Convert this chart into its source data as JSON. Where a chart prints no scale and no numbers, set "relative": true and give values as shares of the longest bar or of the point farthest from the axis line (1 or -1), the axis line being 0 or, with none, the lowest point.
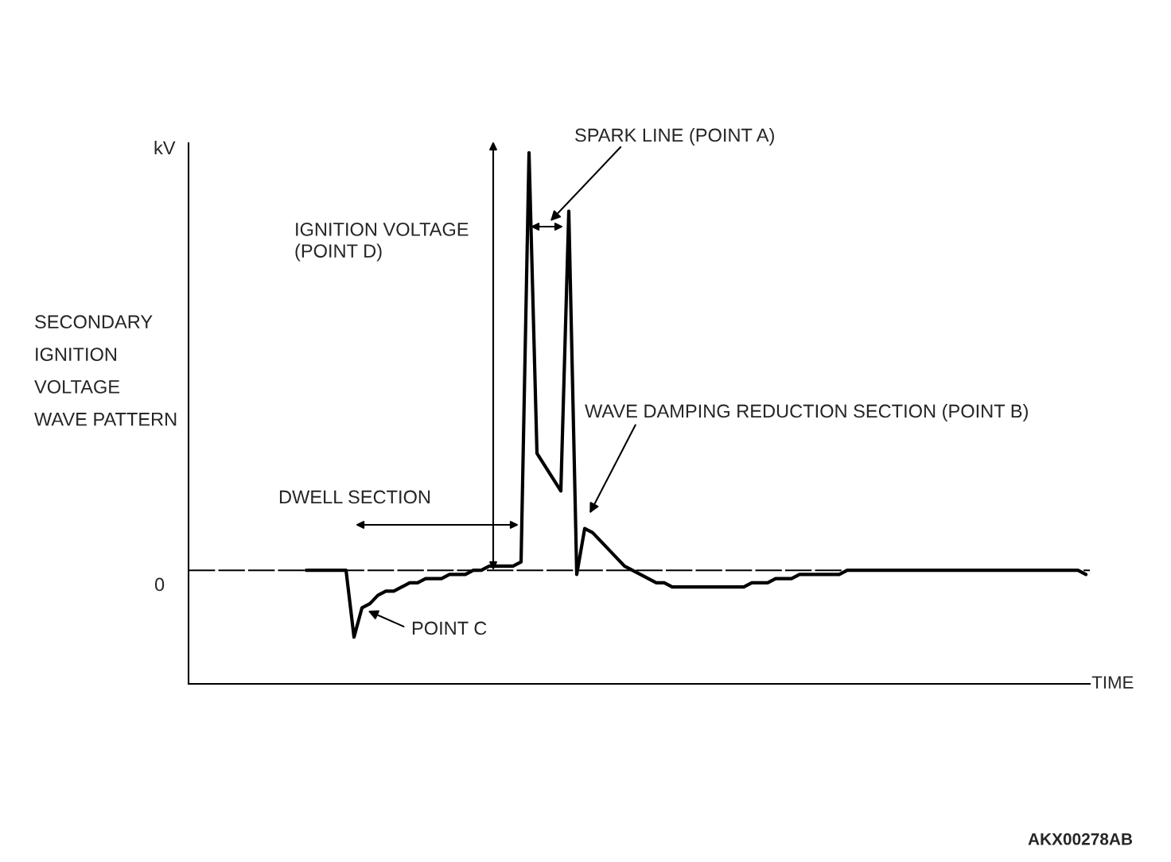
{
  "chart_data": {
    "type": "line",
    "xlabel": "TIME",
    "relative": true,
    "categories": [
      null,
      null,
      null,
      null,
      null,
      null,
      null,
      null,
      null,
      null,
      null,
      null,
      null,
      null,
      null,
      null,
      null,
      null,
      null,
      null,
      null,
      null,
      null,
      null,
      null,
      null,
      null,
      null,
      null,
      null,
      null,
      null,
      null,
      null,
      null,
      null,
      null,
      null,
      null,
      null,
      null,
      null,
      null,
      null,
      null,
      null,
      null,
      null,
      null,
      null,
      null,
      null,
      null,
      null,
      null,
      null,
      null,
      null,
      null,
      null,
      null,
      null,
      null,
      null,
      null,
      null,
      null,
      null,
      null,
      null,
      null,
      null,
      null,
      null,
      null,
      null,
      null,
      null,
      null,
      null,
      null,
      null,
      null,
      null,
      null,
      null,
      null,
      null,
      null,
      null,
      null,
      null,
      null,
      null,
      null,
      null,
      null,
      null,
      null
    ],
    "series": [
      {
        "color": "#000000",
        "values": [
          0,
          0,
          0,
          0,
          0,
          0,
          -0.16,
          -0.09,
          -0.08,
          -0.06,
          -0.05,
          -0.05,
          -0.04,
          -0.03,
          -0.03,
          -0.02,
          -0.02,
          -0.02,
          -0.01,
          -0.01,
          -0.01,
          0,
          0,
          0.01,
          0.01,
          0.01,
          0.01,
          0.02,
          1.0,
          0.28,
          0.25,
          0.22,
          0.19,
          0.86,
          -0.01,
          0.1,
          0.09,
          0.07,
          0.05,
          0.03,
          0.01,
          0,
          -0.01,
          -0.02,
          -0.03,
          -0.03,
          -0.04,
          -0.04,
          -0.04,
          -0.04,
          -0.04,
          -0.04,
          -0.04,
          -0.04,
          -0.04,
          -0.04,
          -0.03,
          -0.03,
          -0.03,
          -0.02,
          -0.02,
          -0.02,
          -0.01,
          -0.01,
          -0.01,
          -0.01,
          -0.01,
          -0.01,
          0,
          0,
          0,
          0,
          0,
          0,
          0,
          0,
          0,
          0,
          0,
          0,
          0,
          0,
          0,
          0,
          0,
          0,
          0,
          0,
          0,
          0,
          0,
          0,
          0,
          0,
          0,
          0,
          0,
          0,
          -0.01
        ]
      }
    ],
    "ref_lines": [
      {
        "axis": "y",
        "value": 0,
        "color": "#000000",
        "line_style": "dashed"
      }
    ],
    "annotations": [
      "SECONDARY\nIGNITION\nVOLTAGE\nWAVE PATTERN",
      "kV",
      "0",
      "SPARK LINE (POINT A)",
      "IGNITION VOLTAGE\n(POINT D)",
      "DWELL SECTION",
      "WAVE DAMPING REDUCTION SECTION (POINT B)",
      "POINT C",
      "AKX00278AB"
    ]
  }
}
